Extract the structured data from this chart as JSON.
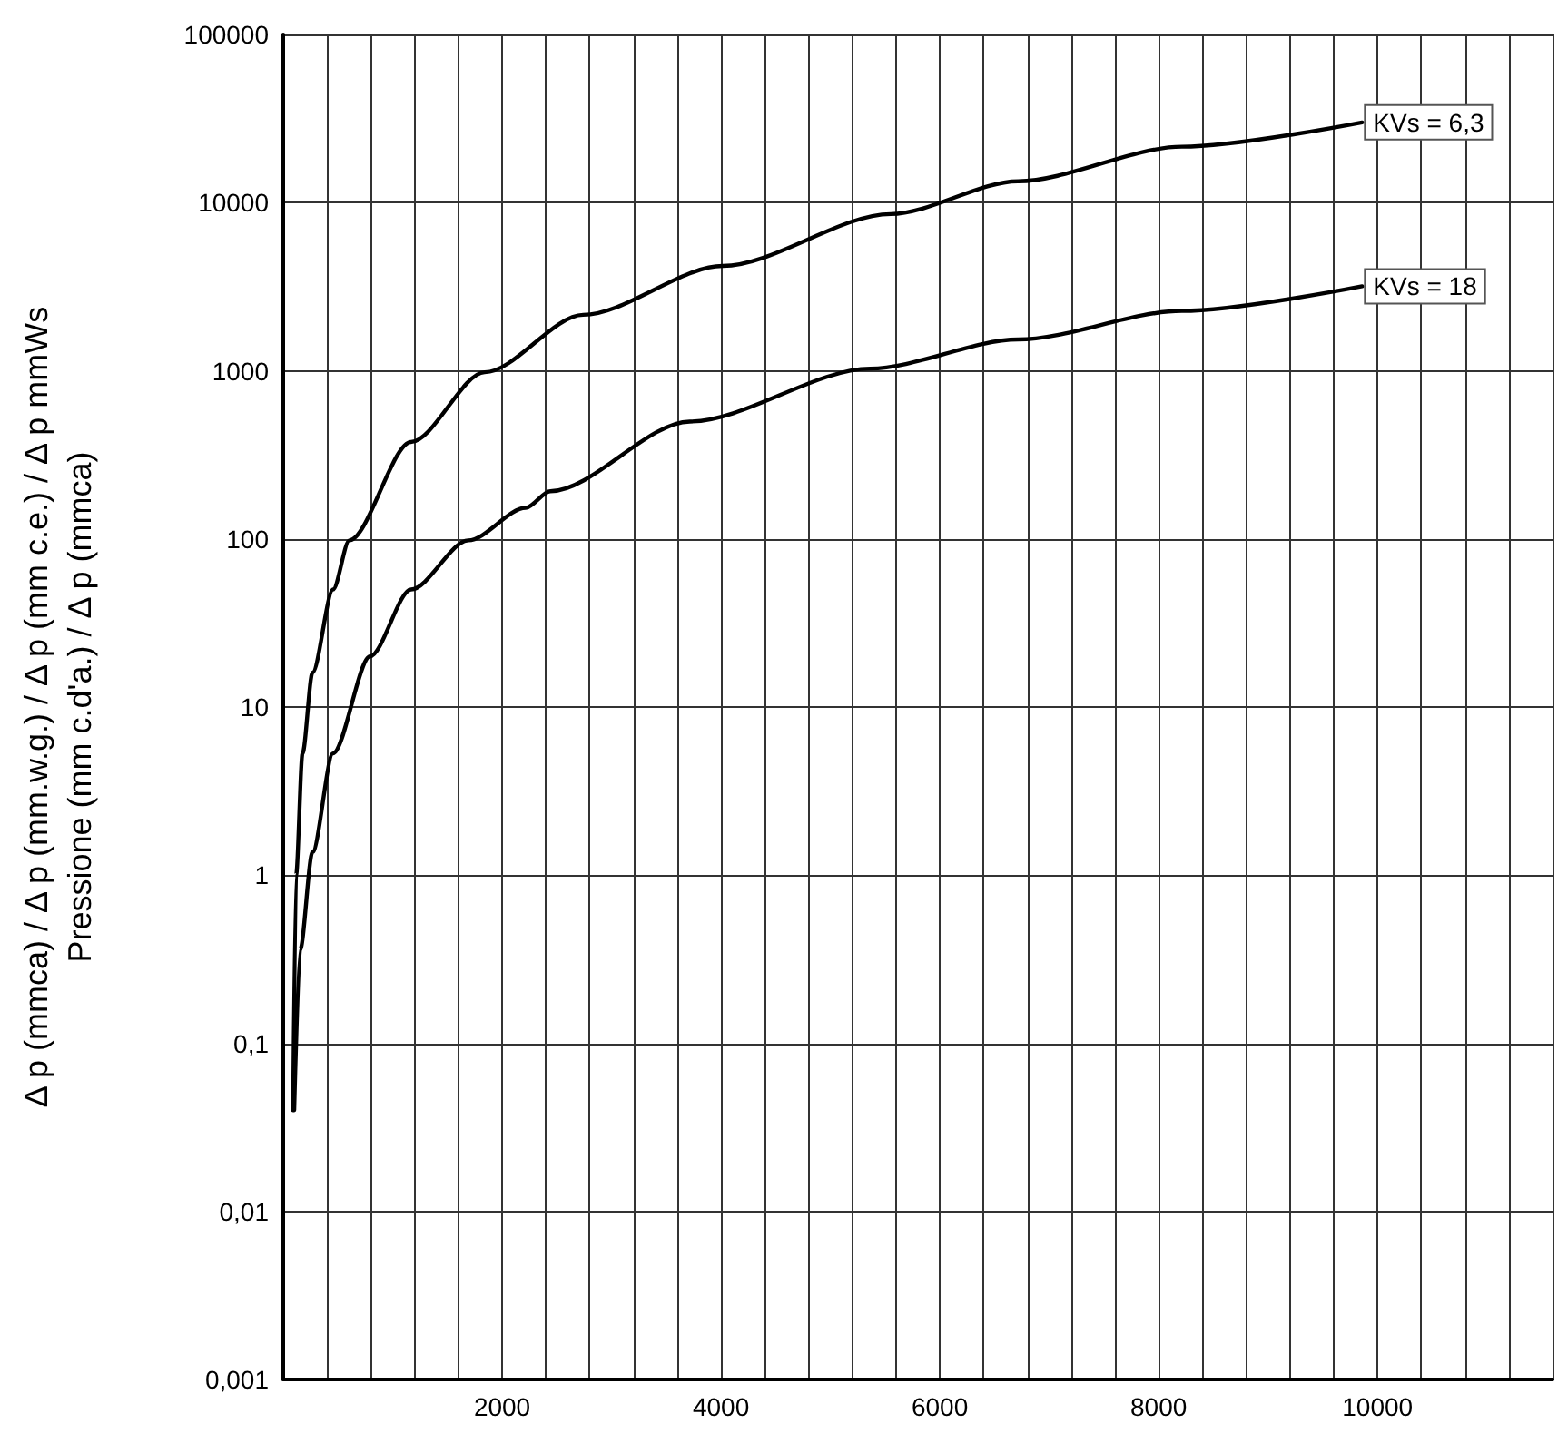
{
  "chart_data": {
    "type": "line",
    "ylabel": "Δ p (mmca) / Δ p (mm.w.g.) / Δ p (mm c.e.) / Δ p mmWs\nPressione (mm c.d'a.) / Δ p (mmca)",
    "log": "y",
    "grid": true,
    "legend": false,
    "marker": "none",
    "line_style": "solid",
    "xlim": [
      0,
      11600
    ],
    "xticks": [
      {
        "value": 0,
        "label": null
      },
      {
        "value": 400,
        "label": null
      },
      {
        "value": 800,
        "label": null
      },
      {
        "value": 1200,
        "label": null
      },
      {
        "value": 1600,
        "label": null
      },
      2000,
      {
        "value": 2400,
        "label": null
      },
      {
        "value": 2800,
        "label": null
      },
      {
        "value": 3200,
        "label": null
      },
      {
        "value": 3600,
        "label": null
      },
      4000,
      {
        "value": 4400,
        "label": null
      },
      {
        "value": 4800,
        "label": null
      },
      {
        "value": 5200,
        "label": null
      },
      {
        "value": 5600,
        "label": null
      },
      6000,
      {
        "value": 6400,
        "label": null
      },
      {
        "value": 6800,
        "label": null
      },
      {
        "value": 7200,
        "label": null
      },
      {
        "value": 7600,
        "label": null
      },
      8000,
      {
        "value": 8400,
        "label": null
      },
      {
        "value": 8800,
        "label": null
      },
      {
        "value": 9200,
        "label": null
      },
      {
        "value": 9600,
        "label": null
      },
      10000,
      {
        "value": 10400,
        "label": null
      },
      {
        "value": 10800,
        "label": null
      },
      {
        "value": 11200,
        "label": null
      },
      {
        "value": 11600,
        "label": null
      }
    ],
    "ylim": [
      0.001,
      100000
    ],
    "yticks": [
      {
        "value": 0.001,
        "label": "0,001"
      },
      {
        "value": 0.01,
        "label": "0,01"
      },
      {
        "value": 0.1,
        "label": "0,1"
      },
      1,
      10,
      100,
      1000,
      10000,
      100000
    ],
    "series": [
      {
        "name": "KVs = 6,3",
        "color": "#000000",
        "x": [
          90,
          117,
          176,
          267,
          455,
          604,
          1167,
          1841,
          2740,
          4015,
          5552,
          6714,
          8213,
          9860
        ],
        "values": [
          0.04,
          1,
          5.3,
          16,
          50,
          98,
          377,
          980,
          2150,
          4200,
          8550,
          13400,
          21500,
          30000
        ]
      },
      {
        "name": "KVs = 18",
        "color": "#000000",
        "x": [
          100,
          154,
          267,
          455,
          792,
          1167,
          1691,
          2216,
          2440,
          3715,
          5364,
          6714,
          8213,
          9860
        ],
        "values": [
          0.04,
          0.36,
          1.37,
          5.3,
          20,
          50,
          98,
          153,
          192,
          499,
          1030,
          1535,
          2270,
          3180
        ]
      }
    ]
  }
}
